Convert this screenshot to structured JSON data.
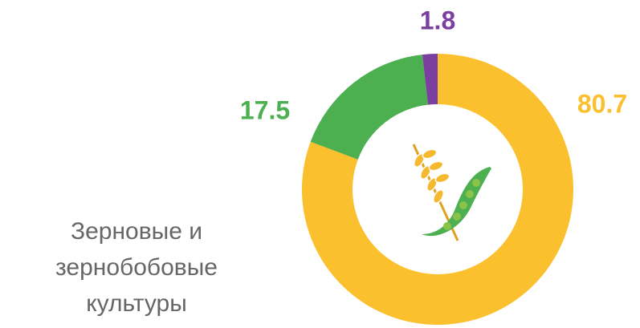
{
  "chart_data": {
    "type": "donut",
    "label": "Зерновые и зернобобовые культуры",
    "values": [
      80.7,
      17.5,
      1.8
    ],
    "colors": [
      "#FBC02D",
      "#4CAF50",
      "#7B3FA0"
    ]
  }
}
